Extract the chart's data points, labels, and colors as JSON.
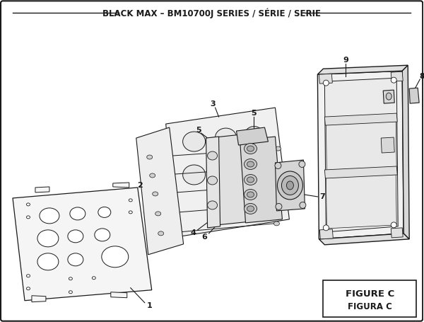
{
  "title": "BLACK MAX – BM10700J SERIES / SÉRIE / SERIE",
  "figure_label": "FIGURE C",
  "figura_label": "FIGURA C",
  "bg_color": "#ffffff",
  "lc": "#1a1a1a",
  "title_fontsize": 8.5,
  "fig_label_fontsize": 9.5
}
